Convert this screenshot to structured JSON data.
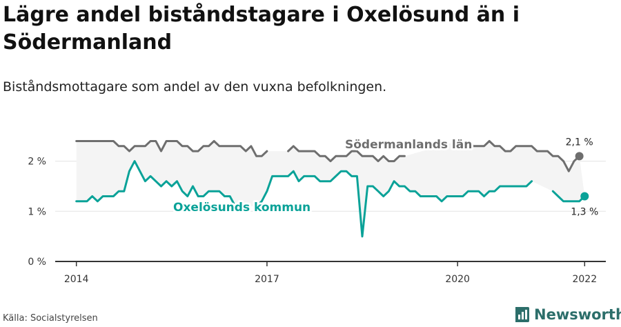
{
  "header": {
    "title": "Lägre andel biståndstagare i Oxelösund än i Södermanland",
    "subtitle": "Biståndsmottagare som andel av den vuxna befolkningen."
  },
  "footer": {
    "source": "Källa: Socialstyrelsen",
    "brand": "Newsworthy",
    "brand_color": "#2c6e6a",
    "brand_icon": "bar-chart-logo-icon"
  },
  "chart_data": {
    "type": "line",
    "y_ticks": [
      {
        "value": 0,
        "label": "0 %"
      },
      {
        "value": 1,
        "label": "1 %"
      },
      {
        "value": 2,
        "label": "2 %"
      }
    ],
    "x_ticks": [
      {
        "value": "2014-01",
        "label": "2014"
      },
      {
        "value": "2017-01",
        "label": "2017"
      },
      {
        "value": "2020-01",
        "label": "2020"
      },
      {
        "value": "2022-01",
        "label": "2022"
      }
    ],
    "ylim": [
      0,
      2.6
    ],
    "xlim": [
      "2013-09",
      "2022-05"
    ],
    "grid": true,
    "legend": "direct labels on lines",
    "series": [
      {
        "name": "Södermanlands län",
        "color": "#6e6e6e",
        "start": "2014-01",
        "end_label": "2,1 %",
        "values": [
          2.4,
          2.4,
          2.4,
          2.4,
          2.4,
          2.4,
          2.4,
          2.4,
          2.3,
          2.3,
          2.2,
          2.3,
          2.3,
          2.3,
          2.4,
          2.4,
          2.2,
          2.4,
          2.4,
          2.4,
          2.3,
          2.3,
          2.2,
          2.2,
          2.3,
          2.3,
          2.4,
          2.3,
          2.3,
          2.3,
          2.3,
          2.3,
          2.2,
          2.3,
          2.1,
          2.1,
          2.2,
          null,
          null,
          null,
          2.2,
          2.3,
          2.2,
          2.2,
          2.2,
          2.2,
          2.1,
          2.1,
          2.0,
          2.1,
          2.1,
          2.1,
          2.2,
          2.2,
          2.1,
          2.1,
          2.1,
          2.0,
          2.1,
          2.0,
          2.0,
          2.1,
          2.1,
          null,
          null,
          null,
          null,
          null,
          null,
          null,
          null,
          null,
          2.4,
          2.4,
          2.4,
          2.3,
          2.3,
          2.3,
          2.4,
          2.3,
          2.3,
          2.2,
          2.2,
          2.3,
          2.3,
          2.3,
          2.3,
          2.2,
          2.2,
          2.2,
          2.1,
          2.1,
          2.0,
          1.8,
          2.0,
          2.1
        ]
      },
      {
        "name": "Oxelösunds kommun",
        "color": "#0aa298",
        "start": "2014-01",
        "end_label": "1,3 %",
        "values": [
          1.2,
          1.2,
          1.2,
          1.3,
          1.2,
          1.3,
          1.3,
          1.3,
          1.4,
          1.4,
          1.8,
          2.0,
          1.8,
          1.6,
          1.7,
          1.6,
          1.5,
          1.6,
          1.5,
          1.6,
          1.4,
          1.3,
          1.5,
          1.3,
          1.3,
          1.4,
          1.4,
          1.4,
          1.3,
          1.3,
          1.1,
          null,
          null,
          null,
          1.1,
          1.2,
          1.4,
          1.7,
          1.7,
          1.7,
          1.7,
          1.8,
          1.6,
          1.7,
          1.7,
          1.7,
          1.6,
          1.6,
          1.6,
          1.7,
          1.8,
          1.8,
          1.7,
          1.7,
          0.5,
          1.5,
          1.5,
          1.4,
          1.3,
          1.4,
          1.6,
          1.5,
          1.5,
          1.4,
          1.4,
          1.3,
          1.3,
          1.3,
          1.3,
          1.2,
          1.3,
          1.3,
          1.3,
          1.3,
          1.4,
          1.4,
          1.4,
          1.3,
          1.4,
          1.4,
          1.5,
          1.5,
          1.5,
          1.5,
          1.5,
          1.5,
          1.6,
          null,
          null,
          null,
          1.4,
          1.3,
          1.2,
          1.2,
          1.2,
          1.2,
          1.3
        ]
      }
    ]
  }
}
